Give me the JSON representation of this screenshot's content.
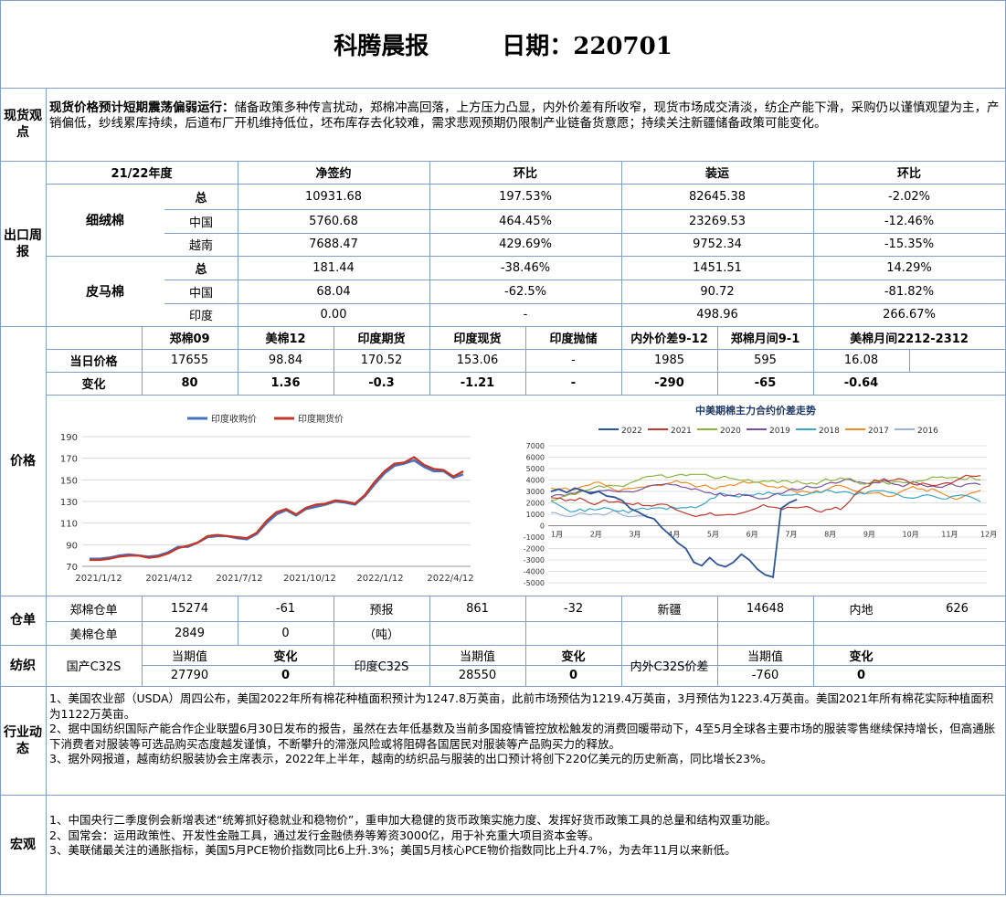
{
  "header": {
    "title": "科腾晨报",
    "date": "日期：220701"
  },
  "spot": {
    "section": "现货观点",
    "lead": "现货价格预计短期震荡偏弱运行：",
    "body": "储备政策多种传言扰动，郑棉冲高回落，上方压力凸显，内外价差有所收窄，现货市场成交清淡，纺企产能下滑，采购仍以谨慎观望为主，产销偏低，纱线累库持续，后道布厂开机维持低位，坯布库存去化较难，需求悲观预期仍限制产业链备货意愿；持续关注新疆储备政策可能变化。"
  },
  "export": {
    "section": "出口周报",
    "headers": [
      "21/22年度",
      "净签约",
      "环比",
      "装运",
      "环比"
    ],
    "groups": [
      {
        "name": "细绒棉",
        "rows": [
          {
            "label": "总",
            "net": "10931.68",
            "net_chg": "197.53%",
            "ship": "82645.38",
            "ship_chg": "-2.02%"
          },
          {
            "label": "中国",
            "net": "5760.68",
            "net_chg": "464.45%",
            "ship": "23269.53",
            "ship_chg": "-12.46%"
          },
          {
            "label": "越南",
            "net": "7688.47",
            "net_chg": "429.69%",
            "ship": "9752.34",
            "ship_chg": "-15.35%"
          }
        ]
      },
      {
        "name": "皮马棉",
        "rows": [
          {
            "label": "总",
            "net": "181.44",
            "net_chg": "-38.46%",
            "ship": "1451.51",
            "ship_chg": "14.29%"
          },
          {
            "label": "中国",
            "net": "68.04",
            "net_chg": "-62.5%",
            "ship": "90.72",
            "ship_chg": "-81.82%"
          },
          {
            "label": "印度",
            "net": "0.00",
            "net_chg": "-",
            "ship": "498.96",
            "ship_chg": "266.67%"
          }
        ]
      }
    ]
  },
  "price": {
    "section": "价格",
    "headers": [
      "郑棉09",
      "美棉12",
      "印度期货",
      "印度现货",
      "印度抛储",
      "内外价差9-12",
      "郑棉月间9-1",
      "美棉月间2212-2312"
    ],
    "row1": {
      "label": "当日价格",
      "values": [
        "17655",
        "98.84",
        "170.52",
        "153.06",
        "-",
        "1985",
        "595",
        "16.08"
      ]
    },
    "row2": {
      "label": "变化",
      "values": [
        "80",
        "1.36",
        "-0.3",
        "-1.21",
        "-",
        "-290",
        "-65",
        "-0.64"
      ]
    }
  },
  "chart_data": [
    {
      "type": "line",
      "title": "",
      "legend": [
        "印度收购价",
        "印度期货价"
      ],
      "colors": [
        "#4472c4",
        "#c0392b"
      ],
      "ylim": [
        70,
        190
      ],
      "yticks": [
        70,
        90,
        110,
        130,
        150,
        170,
        190
      ],
      "xticks": [
        "2021/1/12",
        "2021/4/12",
        "2021/7/12",
        "2021/10/12",
        "2022/1/12",
        "2022/4/12"
      ],
      "series": [
        {
          "name": "印度收购价",
          "values": [
            77,
            77,
            78,
            80,
            81,
            80,
            79,
            80,
            83,
            88,
            88,
            92,
            97,
            98,
            98,
            96,
            95,
            100,
            110,
            118,
            122,
            117,
            123,
            125,
            127,
            130,
            129,
            127,
            135,
            146,
            156,
            163,
            165,
            168,
            162,
            158,
            158,
            152,
            155
          ]
        },
        {
          "name": "印度期货价",
          "values": [
            76,
            76,
            77,
            79,
            80,
            80,
            78,
            79,
            82,
            87,
            89,
            92,
            98,
            99,
            98,
            97,
            96,
            101,
            112,
            120,
            123,
            118,
            124,
            127,
            128,
            131,
            130,
            128,
            136,
            148,
            158,
            165,
            166,
            171,
            164,
            160,
            159,
            153,
            158
          ]
        }
      ]
    },
    {
      "type": "line",
      "title": "中美期棉主力合约价差走势",
      "legend": [
        "2022",
        "2021",
        "2020",
        "2019",
        "2018",
        "2017",
        "2016"
      ],
      "colors": [
        "#2e5597",
        "#c0392b",
        "#8db33f",
        "#7a4f9e",
        "#3aa6c4",
        "#f08a24",
        "#9fb3d6"
      ],
      "ylim": [
        -5000,
        7000
      ],
      "yticks": [
        -5000,
        -4000,
        -3000,
        -2000,
        -1000,
        0,
        1000,
        2000,
        3000,
        4000,
        5000,
        6000,
        7000
      ],
      "xticks": [
        "1月",
        "2月",
        "3月",
        "4月",
        "5月",
        "6月",
        "7月",
        "8月",
        "9月",
        "10月",
        "11月",
        "12月"
      ]
    }
  ],
  "warehouse": {
    "section": "仓单",
    "r1": {
      "zc_label": "郑棉仓单",
      "zc": "15274",
      "zc_chg": "-61",
      "fc_label": "预报",
      "fc": "861",
      "fc_chg": "-32",
      "xj_label": "新疆",
      "xj": "14648",
      "nd_label": "内地",
      "nd": "626"
    },
    "r2": {
      "us_label": "美棉仓单",
      "us": "2849",
      "us_chg": "0",
      "unit": "（吨）"
    }
  },
  "textile": {
    "section": "纺织",
    "a_label": "国产C32S",
    "b_label": "印度C32S",
    "c_label": "内外C32S价差",
    "cur": "当期值",
    "chg": "变化",
    "a_val": "27790",
    "a_chg": "0",
    "b_val": "28550",
    "b_chg": "0",
    "c_val": "-760",
    "c_chg": "0"
  },
  "industry": {
    "section": "行业动态",
    "items": [
      "1、美国农业部（USDA）周四公布，美国2022年所有棉花种植面积预计为1247.8万英亩，此前市场预估为1219.4万英亩，3月预估为1223.4万英亩。美国2021年所有棉花实际种植面积为1122万英亩。",
      "2、据中国纺织国际产能合作企业联盟6月30日发布的报告，虽然在去年低基数及当前多国疫情管控放松触发的消费回暖带动下，4至5月全球各主要市场的服装零售继续保持增长，但高通胀下消费者对服装等可选品购买态度越发谨慎，不断攀升的滞涨风险或将阻碍各国居民对服装等产品购买力的释放。",
      "3、据外网报道，越南纺织服装协会主席表示，2022年上半年，越南的纺织品与服装的出口预计将创下220亿美元的历史新高，同比增长23%。"
    ]
  },
  "macro": {
    "section": "宏观",
    "items": [
      "1、中国央行二季度例会新增表述“统筹抓好稳就业和稳物价”，重申加大稳健的货币政策实施力度、发挥好货币政策工具的总量和结构双重功能。",
      "2、国常会：运用政策性、开发性金融工具，通过发行金融债券等筹资3000亿，用于补充重大项目资本金等。",
      "3、美联储最关注的通胀指标，美国5月PCE物价指数同比6上升.3%；美国5月核心PCE物价指数同比上升4.7%，为去年11月以来新低。"
    ]
  }
}
